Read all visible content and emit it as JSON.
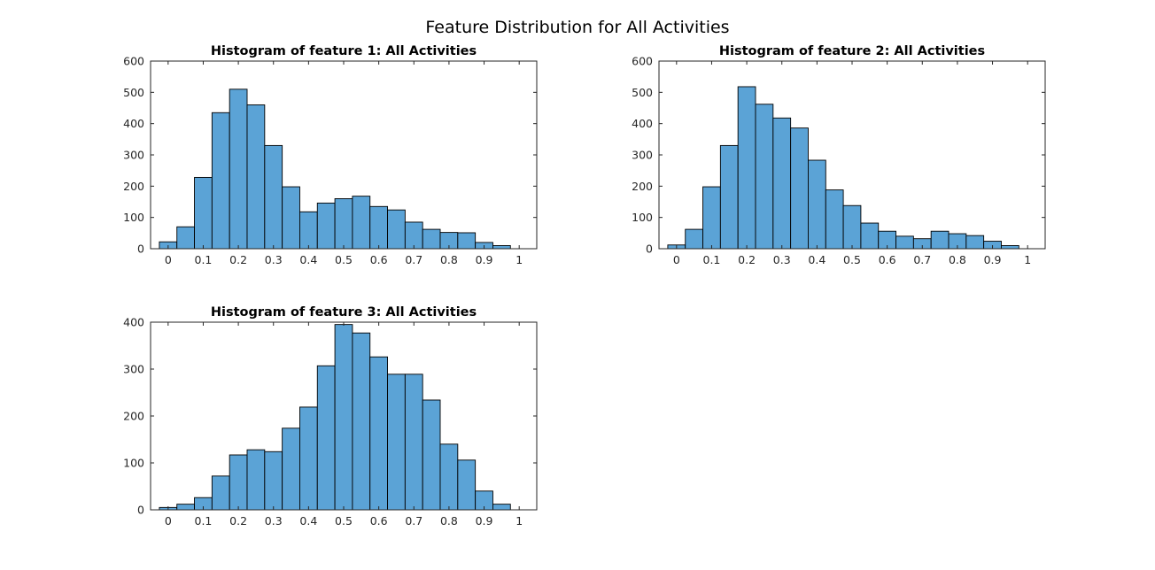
{
  "figure_title": "Feature Distribution for All Activities",
  "colors": {
    "bar_fill": "#5ba3d6",
    "bar_edge": "#000000",
    "axis": "#262626"
  },
  "chart_data": [
    {
      "type": "bar",
      "title": "Histogram of feature 1: All Activities",
      "xlabel": "",
      "ylabel": "",
      "xlim": [
        -0.05,
        1.05
      ],
      "ylim": [
        0,
        600
      ],
      "x_ticks": [
        0,
        0.1,
        0.2,
        0.3,
        0.4,
        0.5,
        0.6,
        0.7,
        0.8,
        0.9,
        1
      ],
      "x_tick_labels": [
        "0",
        "0.1",
        "0.2",
        "0.3",
        "0.4",
        "0.5",
        "0.6",
        "0.7",
        "0.8",
        "0.9",
        "1"
      ],
      "y_ticks": [
        0,
        100,
        200,
        300,
        400,
        500,
        600
      ],
      "y_tick_labels": [
        "0",
        "100",
        "200",
        "300",
        "400",
        "500",
        "600"
      ],
      "bin_start": -0.025,
      "bin_width": 0.05,
      "values": [
        22,
        70,
        228,
        435,
        510,
        460,
        330,
        198,
        118,
        146,
        160,
        168,
        135,
        124,
        85,
        62,
        52,
        51,
        20,
        10
      ],
      "grid": false
    },
    {
      "type": "bar",
      "title": "Histogram of feature 2: All Activities",
      "xlabel": "",
      "ylabel": "",
      "xlim": [
        -0.05,
        1.05
      ],
      "ylim": [
        0,
        600
      ],
      "x_ticks": [
        0,
        0.1,
        0.2,
        0.3,
        0.4,
        0.5,
        0.6,
        0.7,
        0.8,
        0.9,
        1
      ],
      "x_tick_labels": [
        "0",
        "0.1",
        "0.2",
        "0.3",
        "0.4",
        "0.5",
        "0.6",
        "0.7",
        "0.8",
        "0.9",
        "1"
      ],
      "y_ticks": [
        0,
        100,
        200,
        300,
        400,
        500,
        600
      ],
      "y_tick_labels": [
        "0",
        "100",
        "200",
        "300",
        "400",
        "500",
        "600"
      ],
      "bin_start": -0.025,
      "bin_width": 0.05,
      "values": [
        12,
        62,
        198,
        330,
        518,
        462,
        418,
        386,
        283,
        188,
        138,
        82,
        56,
        40,
        32,
        56,
        48,
        42,
        24,
        10
      ],
      "grid": false
    },
    {
      "type": "bar",
      "title": "Histogram of feature 3: All Activities",
      "xlabel": "",
      "ylabel": "",
      "xlim": [
        -0.05,
        1.05
      ],
      "ylim": [
        0,
        400
      ],
      "x_ticks": [
        0,
        0.1,
        0.2,
        0.3,
        0.4,
        0.5,
        0.6,
        0.7,
        0.8,
        0.9,
        1
      ],
      "x_tick_labels": [
        "0",
        "0.1",
        "0.2",
        "0.3",
        "0.4",
        "0.5",
        "0.6",
        "0.7",
        "0.8",
        "0.9",
        "1"
      ],
      "y_ticks": [
        0,
        100,
        200,
        300,
        400
      ],
      "y_tick_labels": [
        "0",
        "100",
        "200",
        "300",
        "400"
      ],
      "bin_start": -0.025,
      "bin_width": 0.05,
      "values": [
        5,
        12,
        26,
        72,
        117,
        128,
        124,
        174,
        219,
        307,
        395,
        377,
        326,
        289,
        289,
        234,
        140,
        106,
        40,
        12
      ],
      "grid": false
    }
  ]
}
